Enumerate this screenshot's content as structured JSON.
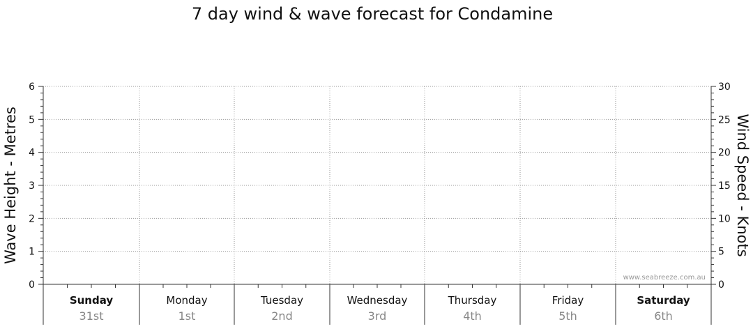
{
  "chart_data": {
    "type": "line",
    "title": "7 day wind & wave forecast for Condamine",
    "ylabel": "Wave Height - Metres",
    "y2label": "Wind Speed - Knots",
    "ylim": [
      0,
      6
    ],
    "y2lim": [
      0,
      30
    ],
    "yticks": [
      "0",
      "1",
      "2",
      "3",
      "4",
      "5",
      "6"
    ],
    "y2ticks": [
      "0",
      "5",
      "10",
      "15",
      "20",
      "25",
      "30"
    ],
    "grid": true,
    "days": [
      {
        "name": "Sunday",
        "date": "31st",
        "bold": true
      },
      {
        "name": "Monday",
        "date": "1st",
        "bold": false
      },
      {
        "name": "Tuesday",
        "date": "2nd",
        "bold": false
      },
      {
        "name": "Wednesday",
        "date": "3rd",
        "bold": false
      },
      {
        "name": "Thursday",
        "date": "4th",
        "bold": false
      },
      {
        "name": "Friday",
        "date": "5th",
        "bold": false
      },
      {
        "name": "Saturday",
        "date": "6th",
        "bold": true
      }
    ],
    "series": []
  },
  "watermark": "www.seabreeze.com.au"
}
